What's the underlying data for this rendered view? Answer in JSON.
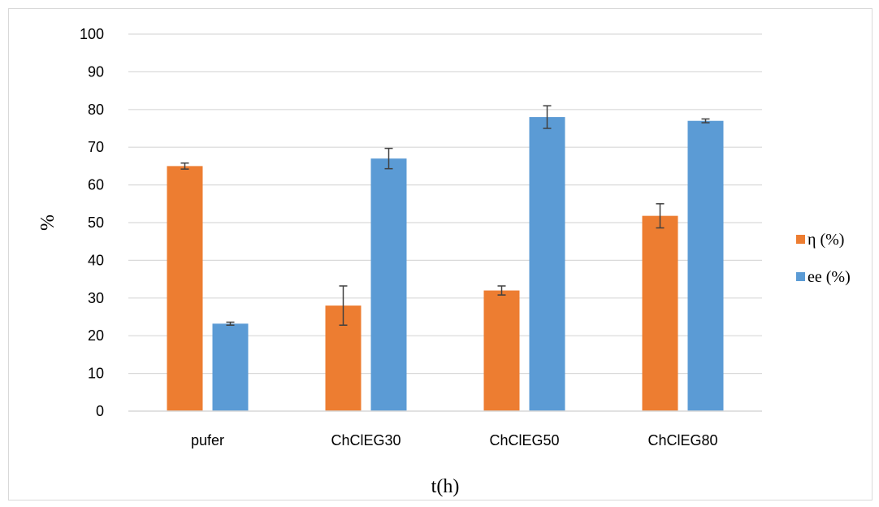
{
  "chart_data": {
    "type": "bar",
    "title": "",
    "xlabel": "t(h)",
    "ylabel": "%",
    "ylim": [
      0,
      100
    ],
    "yticks": [
      0,
      10,
      20,
      30,
      40,
      50,
      60,
      70,
      80,
      90,
      100
    ],
    "grid": "horizontal",
    "legend_position": "right",
    "categories": [
      "pufer",
      "ChClEG30",
      "ChClEG50",
      "ChClEG80"
    ],
    "series": [
      {
        "name": "η (%)",
        "color": "#ED7D31",
        "values": [
          65,
          28,
          32,
          51.8
        ],
        "error": [
          0.8,
          5.2,
          1.2,
          3.2
        ]
      },
      {
        "name": "ee (%)",
        "color": "#5B9BD5",
        "values": [
          23.2,
          67,
          78,
          77
        ],
        "error": [
          0.4,
          2.7,
          3.0,
          0.5
        ]
      }
    ]
  }
}
